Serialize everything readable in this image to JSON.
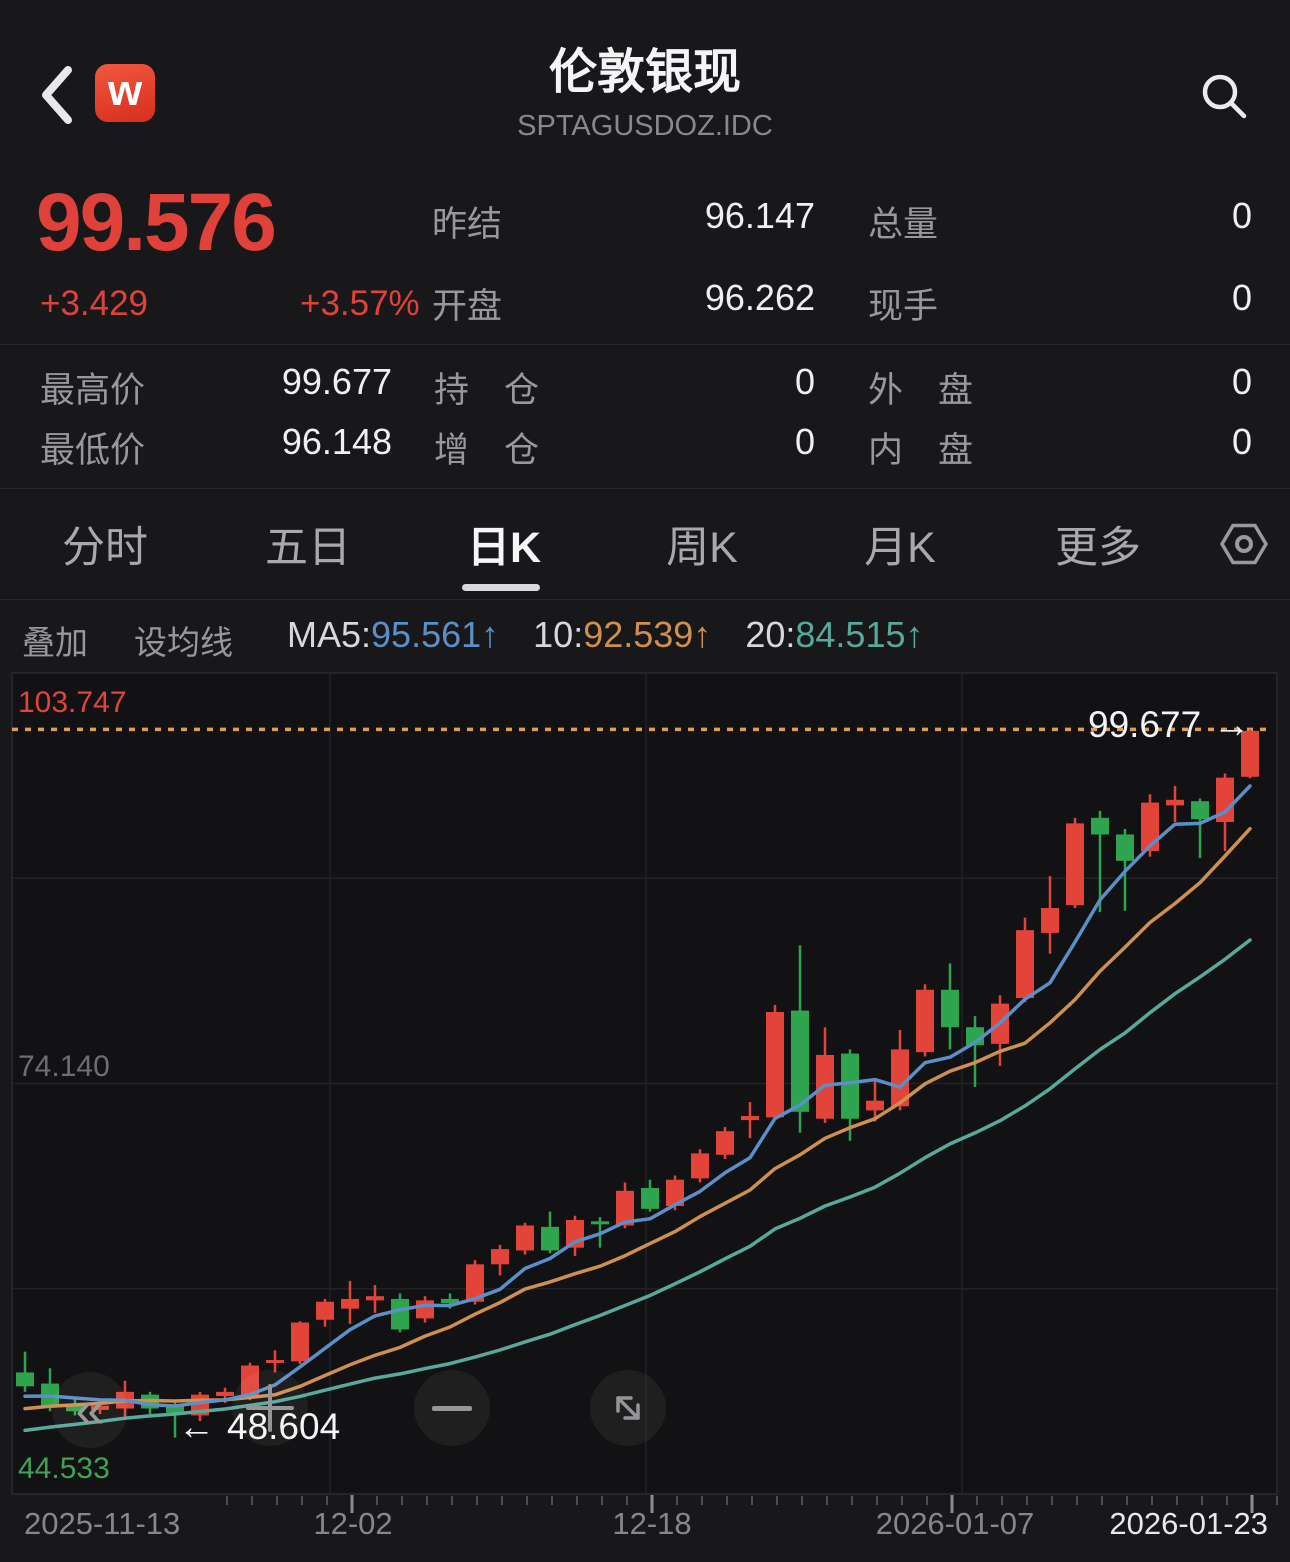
{
  "header": {
    "title": "伦敦银现",
    "subtitle": "SPTAGUSDOZ.IDC",
    "logo_text": "w"
  },
  "quote": {
    "last": "99.576",
    "change": "+3.429",
    "change_pct": "+3.57%",
    "prev_close": {
      "label": "昨结",
      "value": "96.147"
    },
    "open": {
      "label": "开盘",
      "value": "96.262"
    },
    "total_volume": {
      "label": "总量",
      "value": "0"
    },
    "current_volume": {
      "label": "现手",
      "value": "0"
    },
    "high": {
      "label": "最高价",
      "value": "99.677"
    },
    "open_interest": {
      "label": "持　仓",
      "value": "0"
    },
    "outer_disc": {
      "label": "外　盘",
      "value": "0"
    },
    "low": {
      "label": "最低价",
      "value": "96.148"
    },
    "oi_change": {
      "label": "增　仓",
      "value": "0"
    },
    "inner_disc": {
      "label": "内　盘",
      "value": "0"
    }
  },
  "tabs": {
    "items": [
      "分时",
      "五日",
      "日K",
      "周K",
      "月K",
      "更多"
    ],
    "active": "日K"
  },
  "ma_bar": {
    "overlay": "叠加",
    "set_ma": "设均线",
    "ma5_prefix": "MA5:",
    "ma5_value": "95.561",
    "ma5_arrow": "↑",
    "ma10_prefix": "10:",
    "ma10_value": "92.539",
    "ma10_arrow": "↑",
    "ma20_prefix": "20:",
    "ma20_value": "84.515",
    "ma20_arrow": "↑"
  },
  "colors": {
    "up": "#e2443a",
    "down": "#2fa44e",
    "ma5": "#5b8fc7",
    "ma10": "#cf8f4e",
    "ma20": "#57a99b",
    "reference_dotted": "#dc9f58",
    "price_text": "#e0413a",
    "grid": "#222226",
    "border": "#2a2a2d",
    "plot_bg": "#121214",
    "tick_minor": "#4c4c50",
    "tick_major": "#8c8c90"
  },
  "chart_data": {
    "type": "candlestick",
    "title": "伦敦银现 日K",
    "y_axis": {
      "max": 103.747,
      "mid": 74.14,
      "min": 44.533,
      "max_label": "103.747",
      "mid_label": "74.140",
      "min_label": "44.533"
    },
    "x_tick_labels": [
      "2025-11-13",
      "12-02",
      "12-18",
      "2026-01-07",
      "2026-01-23"
    ],
    "x_tick_indices": [
      0,
      13,
      25,
      37,
      49
    ],
    "high_annotation": {
      "text": "99.677",
      "arrow": "→",
      "value": 99.677
    },
    "low_annotation": {
      "text": "48.604",
      "arrow": "←",
      "value": 48.604,
      "candle_index": 6
    },
    "ma_periods": [
      5,
      10,
      20
    ],
    "prehistory_closes": [
      46.0,
      46.2,
      46.5,
      46.8,
      47.1,
      47.4,
      47.7,
      48.0,
      48.3,
      48.6,
      48.9,
      49.2,
      49.5,
      49.8,
      50.1,
      50.4,
      50.8,
      51.2,
      51.6,
      52.0
    ],
    "candles": [
      {
        "d": "2025-11-13",
        "o": 53.3,
        "h": 54.8,
        "l": 51.9,
        "c": 52.3
      },
      {
        "d": "2025-11-14",
        "o": 52.5,
        "h": 53.6,
        "l": 50.5,
        "c": 50.9
      },
      {
        "d": "2025-11-17",
        "o": 50.9,
        "h": 51.4,
        "l": 50.2,
        "c": 50.5
      },
      {
        "d": "2025-11-18",
        "o": 50.6,
        "h": 51.3,
        "l": 50.3,
        "c": 50.9
      },
      {
        "d": "2025-11-19",
        "o": 50.7,
        "h": 52.7,
        "l": 49.9,
        "c": 51.9
      },
      {
        "d": "2025-11-20",
        "o": 51.7,
        "h": 51.9,
        "l": 50.3,
        "c": 50.7
      },
      {
        "d": "2025-11-21",
        "o": 50.9,
        "h": 51.2,
        "l": 48.604,
        "c": 50.4
      },
      {
        "d": "2025-11-24",
        "o": 50.2,
        "h": 51.9,
        "l": 49.8,
        "c": 51.7
      },
      {
        "d": "2025-11-25",
        "o": 51.6,
        "h": 52.2,
        "l": 51.1,
        "c": 51.9
      },
      {
        "d": "2025-11-26",
        "o": 51.5,
        "h": 54.0,
        "l": 51.3,
        "c": 53.8
      },
      {
        "d": "2025-11-27",
        "o": 54.0,
        "h": 54.9,
        "l": 53.3,
        "c": 54.2
      },
      {
        "d": "2025-11-28",
        "o": 54.1,
        "h": 57.0,
        "l": 53.9,
        "c": 56.9
      },
      {
        "d": "2025-12-01",
        "o": 57.1,
        "h": 58.6,
        "l": 56.6,
        "c": 58.4
      },
      {
        "d": "2025-12-02",
        "o": 57.9,
        "h": 59.9,
        "l": 56.8,
        "c": 58.6
      },
      {
        "d": "2025-12-03",
        "o": 58.5,
        "h": 59.6,
        "l": 57.6,
        "c": 58.8
      },
      {
        "d": "2025-12-04",
        "o": 58.6,
        "h": 59.0,
        "l": 56.2,
        "c": 56.4
      },
      {
        "d": "2025-12-05",
        "o": 57.2,
        "h": 58.8,
        "l": 56.9,
        "c": 58.5
      },
      {
        "d": "2025-12-08",
        "o": 58.6,
        "h": 59.0,
        "l": 57.9,
        "c": 58.3
      },
      {
        "d": "2025-12-09",
        "o": 58.4,
        "h": 61.4,
        "l": 58.2,
        "c": 61.1
      },
      {
        "d": "2025-12-10",
        "o": 61.1,
        "h": 62.5,
        "l": 60.3,
        "c": 62.2
      },
      {
        "d": "2025-12-11",
        "o": 62.1,
        "h": 64.1,
        "l": 61.8,
        "c": 63.9
      },
      {
        "d": "2025-12-12",
        "o": 63.8,
        "h": 64.9,
        "l": 61.9,
        "c": 62.1
      },
      {
        "d": "2025-12-15",
        "o": 62.3,
        "h": 64.6,
        "l": 61.7,
        "c": 64.3
      },
      {
        "d": "2025-12-16",
        "o": 64.2,
        "h": 64.5,
        "l": 62.3,
        "c": 64.0
      },
      {
        "d": "2025-12-17",
        "o": 63.9,
        "h": 67.0,
        "l": 63.7,
        "c": 66.4
      },
      {
        "d": "2025-12-18",
        "o": 66.6,
        "h": 67.2,
        "l": 64.9,
        "c": 65.1
      },
      {
        "d": "2025-12-19",
        "o": 65.3,
        "h": 67.5,
        "l": 65.0,
        "c": 67.2
      },
      {
        "d": "2025-12-22",
        "o": 67.3,
        "h": 69.4,
        "l": 67.0,
        "c": 69.1
      },
      {
        "d": "2025-12-23",
        "o": 69.0,
        "h": 71.0,
        "l": 68.7,
        "c": 70.7
      },
      {
        "d": "2025-12-24",
        "o": 71.5,
        "h": 72.8,
        "l": 70.2,
        "c": 71.8
      },
      {
        "d": "2025-12-26",
        "o": 71.7,
        "h": 79.8,
        "l": 71.5,
        "c": 79.3
      },
      {
        "d": "2025-12-29",
        "o": 79.4,
        "h": 84.1,
        "l": 70.6,
        "c": 72.1
      },
      {
        "d": "2025-12-30",
        "o": 71.6,
        "h": 78.2,
        "l": 71.3,
        "c": 76.2
      },
      {
        "d": "2025-12-31",
        "o": 76.3,
        "h": 76.6,
        "l": 70.0,
        "c": 71.6
      },
      {
        "d": "2026-01-02",
        "o": 72.2,
        "h": 74.5,
        "l": 71.4,
        "c": 72.9
      },
      {
        "d": "2026-01-05",
        "o": 72.5,
        "h": 78.0,
        "l": 72.2,
        "c": 76.6
      },
      {
        "d": "2026-01-06",
        "o": 76.4,
        "h": 81.3,
        "l": 76.1,
        "c": 80.9
      },
      {
        "d": "2026-01-07",
        "o": 80.9,
        "h": 82.8,
        "l": 76.6,
        "c": 78.2
      },
      {
        "d": "2026-01-08",
        "o": 78.2,
        "h": 79.0,
        "l": 73.9,
        "c": 76.9
      },
      {
        "d": "2026-01-09",
        "o": 77.0,
        "h": 80.5,
        "l": 75.4,
        "c": 79.9
      },
      {
        "d": "2026-01-12",
        "o": 80.3,
        "h": 86.1,
        "l": 80.0,
        "c": 85.2
      },
      {
        "d": "2026-01-13",
        "o": 85.0,
        "h": 89.1,
        "l": 83.5,
        "c": 86.8
      },
      {
        "d": "2026-01-14",
        "o": 87.0,
        "h": 93.3,
        "l": 86.8,
        "c": 92.9
      },
      {
        "d": "2026-01-15",
        "o": 93.3,
        "h": 93.8,
        "l": 86.5,
        "c": 92.1
      },
      {
        "d": "2026-01-16",
        "o": 92.1,
        "h": 92.5,
        "l": 86.6,
        "c": 90.2
      },
      {
        "d": "2026-01-19",
        "o": 90.9,
        "h": 95.0,
        "l": 90.5,
        "c": 94.4
      },
      {
        "d": "2026-01-20",
        "o": 94.2,
        "h": 95.6,
        "l": 93.0,
        "c": 94.6
      },
      {
        "d": "2026-01-21",
        "o": 94.5,
        "h": 94.7,
        "l": 90.4,
        "c": 93.2
      },
      {
        "d": "2026-01-22",
        "o": 93.0,
        "h": 96.5,
        "l": 90.9,
        "c": 96.2
      },
      {
        "d": "2026-01-23",
        "o": 96.262,
        "h": 99.677,
        "l": 96.148,
        "c": 99.576
      }
    ]
  }
}
